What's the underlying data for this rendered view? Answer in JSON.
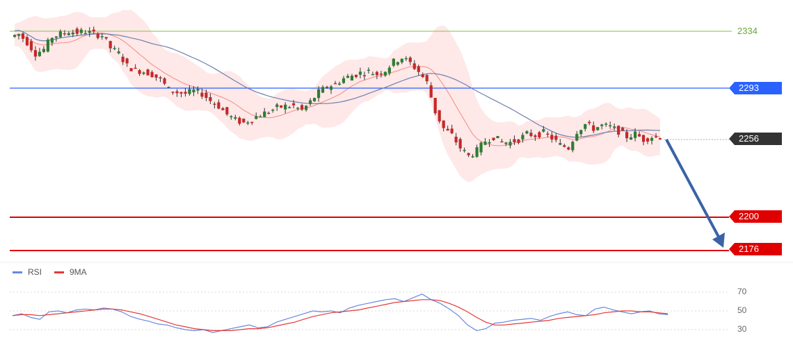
{
  "colors": {
    "candle_up": "#2e7d32",
    "candle_down": "#c62828",
    "band_fill": "#fde0e0",
    "band_mid": "#f28b82",
    "ma_line": "#6b80b0",
    "level_green": "#9ccc65",
    "level_blue": "#2962ff",
    "level_red": "#e00000",
    "current_tag": "#333333",
    "rsi_line": "#6688dd",
    "rsi_ma_line": "#e53935",
    "arrow": "#3a63a7"
  },
  "levels": {
    "resistance_2334": "2334",
    "resistance_2293": "2293",
    "current_2256": "2256",
    "target_2200": "2200",
    "target_2176": "2176"
  },
  "legend": {
    "rsi": "RSI",
    "ma": "9MA"
  },
  "rsi_ticks": [
    "70",
    "50",
    "30"
  ],
  "chart_data": [
    {
      "type": "candlestick",
      "price_scale": [
        2220,
        2350
      ],
      "horizontal_levels": [
        2334,
        2293,
        2256,
        2200,
        2176
      ],
      "forecast_arrow": {
        "from": 2256,
        "to": 2176,
        "direction": "down"
      },
      "close_path": [
        2330,
        2332,
        2326,
        2318,
        2321,
        2330,
        2332,
        2334,
        2333,
        2334,
        2332,
        2331,
        2322,
        2318,
        2309,
        2306,
        2305,
        2303,
        2299,
        2292,
        2290,
        2289,
        2291,
        2289,
        2284,
        2280,
        2274,
        2270,
        2268,
        2271,
        2274,
        2276,
        2279,
        2280,
        2280,
        2277,
        2283,
        2290,
        2294,
        2296,
        2300,
        2302,
        2304,
        2305,
        2303,
        2306,
        2312,
        2315,
        2311,
        2305,
        2297,
        2276,
        2264,
        2259,
        2250,
        2244,
        2248,
        2255,
        2258,
        2254,
        2254,
        2256,
        2260,
        2259,
        2261,
        2257,
        2252,
        2250,
        2262,
        2267,
        2264,
        2266,
        2265,
        2262,
        2258,
        2260,
        2256,
        2258
      ]
    },
    {
      "type": "line",
      "name": "RSI",
      "yticks": [
        70,
        50,
        30
      ],
      "series": [
        {
          "name": "RSI",
          "values": [
            45,
            47,
            43,
            41,
            49,
            50,
            48,
            51,
            52,
            51,
            53,
            52,
            49,
            44,
            41,
            39,
            36,
            35,
            32,
            30,
            29,
            30,
            27,
            29,
            31,
            33,
            35,
            32,
            33,
            38,
            41,
            44,
            47,
            50,
            49,
            50,
            48,
            53,
            56,
            58,
            60,
            62,
            63,
            60,
            64,
            68,
            62,
            58,
            52,
            45,
            35,
            29,
            31,
            37,
            38,
            40,
            41,
            42,
            40,
            44,
            47,
            49,
            46,
            45,
            52,
            54,
            51,
            49,
            47,
            49,
            50,
            47,
            46
          ]
        },
        {
          "name": "9MA",
          "values": [
            45,
            46,
            46,
            45,
            46,
            47,
            48,
            49,
            50,
            51,
            52,
            52,
            51,
            49,
            47,
            44,
            41,
            38,
            35,
            33,
            31,
            30,
            29,
            29,
            29,
            30,
            31,
            31,
            32,
            34,
            36,
            38,
            41,
            44,
            46,
            48,
            49,
            50,
            51,
            53,
            55,
            57,
            59,
            60,
            61,
            62,
            62,
            61,
            58,
            54,
            49,
            43,
            38,
            35,
            35,
            36,
            37,
            38,
            39,
            40,
            42,
            43,
            44,
            45,
            46,
            48,
            49,
            50,
            50,
            49,
            49,
            48,
            47
          ]
        }
      ]
    }
  ]
}
